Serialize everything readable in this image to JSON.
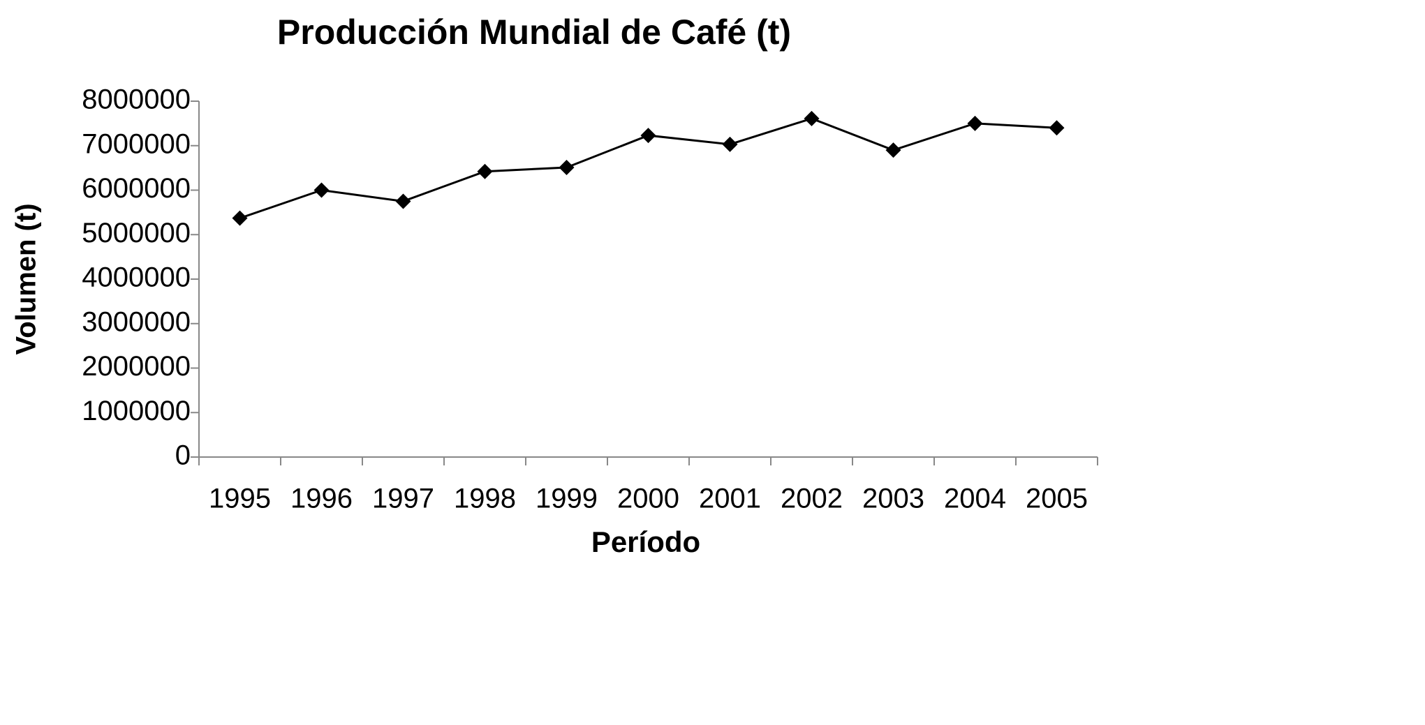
{
  "chart_data": {
    "type": "line",
    "title": "Producción Mundial de Café (t)",
    "x_label": "Período",
    "y_label": "Volumen  (t)",
    "categories": [
      "1995",
      "1996",
      "1997",
      "1998",
      "1999",
      "2000",
      "2001",
      "2002",
      "2003",
      "2004",
      "2005"
    ],
    "series": [
      {
        "name": "Volumen",
        "color": "#000000",
        "values": [
          5370000,
          6000000,
          5750000,
          6420000,
          6510000,
          7230000,
          7030000,
          7610000,
          6900000,
          7500000,
          7400000
        ]
      }
    ],
    "ylim": [
      0,
      8000000
    ],
    "yticks": [
      0,
      1000000,
      2000000,
      3000000,
      4000000,
      5000000,
      6000000,
      7000000,
      8000000
    ],
    "grid": false,
    "marker": "diamond"
  }
}
